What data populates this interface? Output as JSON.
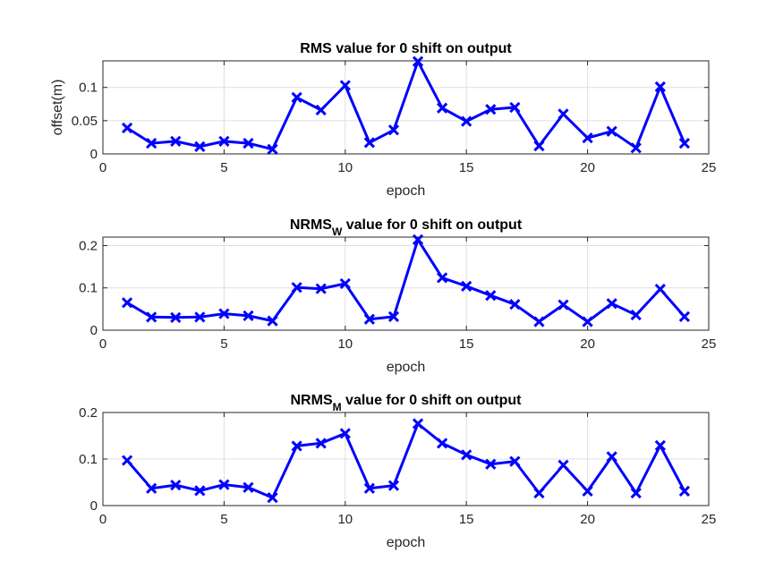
{
  "chart_data": [
    {
      "type": "line",
      "title": "RMS value for 0 shift on output",
      "title_main": "RMS",
      "title_sub": "",
      "title_rest": " value for 0 shift on output",
      "xlabel": "epoch",
      "ylabel": "offset(m)",
      "xlim": [
        0,
        25
      ],
      "ylim": [
        0,
        0.14
      ],
      "xticks": [
        0,
        5,
        10,
        15,
        20,
        25
      ],
      "xtick_labels": [
        "0",
        "5",
        "10",
        "15",
        "20",
        "25"
      ],
      "yticks": [
        0,
        0.05,
        0.1
      ],
      "ytick_labels": [
        "0",
        "0.05",
        "0.1"
      ],
      "grid": true,
      "color": "#0000ff",
      "marker": "x",
      "x": [
        1,
        2,
        3,
        4,
        5,
        6,
        7,
        8,
        9,
        10,
        11,
        12,
        13,
        14,
        15,
        16,
        17,
        18,
        19,
        20,
        21,
        22,
        23,
        24
      ],
      "y": [
        0.039,
        0.016,
        0.019,
        0.011,
        0.019,
        0.016,
        0.007,
        0.085,
        0.066,
        0.103,
        0.017,
        0.036,
        0.139,
        0.069,
        0.049,
        0.067,
        0.07,
        0.012,
        0.06,
        0.024,
        0.034,
        0.009,
        0.101,
        0.016
      ]
    },
    {
      "type": "line",
      "title": "NRMSW value for 0 shift on output",
      "title_main": "NRMS",
      "title_sub": "W",
      "title_rest": " value for 0 shift on output",
      "xlabel": "epoch",
      "ylabel": "",
      "xlim": [
        0,
        25
      ],
      "ylim": [
        0,
        0.22
      ],
      "xticks": [
        0,
        5,
        10,
        15,
        20,
        25
      ],
      "xtick_labels": [
        "0",
        "5",
        "10",
        "15",
        "20",
        "25"
      ],
      "yticks": [
        0,
        0.1,
        0.2
      ],
      "ytick_labels": [
        "0",
        "0.1",
        "0.2"
      ],
      "grid": true,
      "color": "#0000ff",
      "marker": "x",
      "x": [
        1,
        2,
        3,
        4,
        5,
        6,
        7,
        8,
        9,
        10,
        11,
        12,
        13,
        14,
        15,
        16,
        17,
        18,
        19,
        20,
        21,
        22,
        23,
        24
      ],
      "y": [
        0.065,
        0.031,
        0.03,
        0.031,
        0.039,
        0.034,
        0.022,
        0.101,
        0.098,
        0.11,
        0.026,
        0.032,
        0.214,
        0.124,
        0.104,
        0.082,
        0.061,
        0.02,
        0.06,
        0.02,
        0.063,
        0.036,
        0.097,
        0.032
      ]
    },
    {
      "type": "line",
      "title": "NRMSM value for 0 shift on output",
      "title_main": "NRMS",
      "title_sub": "M",
      "title_rest": " value for 0 shift on output",
      "xlabel": "epoch",
      "ylabel": "",
      "xlim": [
        0,
        25
      ],
      "ylim": [
        0,
        0.2
      ],
      "xticks": [
        0,
        5,
        10,
        15,
        20,
        25
      ],
      "xtick_labels": [
        "0",
        "5",
        "10",
        "15",
        "20",
        "25"
      ],
      "yticks": [
        0,
        0.1,
        0.2
      ],
      "ytick_labels": [
        "0",
        "0.1",
        "0.2"
      ],
      "grid": true,
      "color": "#0000ff",
      "marker": "x",
      "x": [
        1,
        2,
        3,
        4,
        5,
        6,
        7,
        8,
        9,
        10,
        11,
        12,
        13,
        14,
        15,
        16,
        17,
        18,
        19,
        20,
        21,
        22,
        23,
        24
      ],
      "y": [
        0.097,
        0.037,
        0.044,
        0.032,
        0.045,
        0.039,
        0.017,
        0.128,
        0.134,
        0.155,
        0.037,
        0.043,
        0.176,
        0.134,
        0.109,
        0.089,
        0.095,
        0.027,
        0.087,
        0.031,
        0.105,
        0.027,
        0.129,
        0.031
      ]
    }
  ]
}
